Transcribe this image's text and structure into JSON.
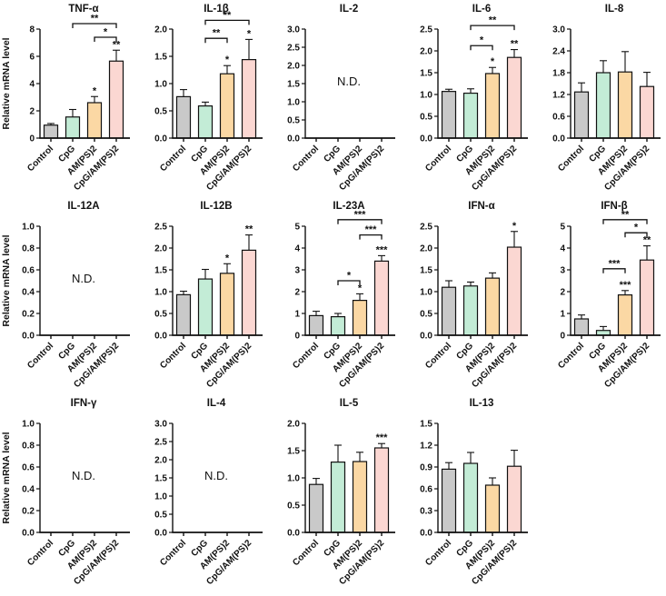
{
  "figure": {
    "ylabel": "Relative mRNA level",
    "nd_label": "N.D.",
    "categories": [
      "Control",
      "CpG",
      "AM(PS)2",
      "CpG/AM(PS)2"
    ],
    "bar_colors": [
      "#c9c9c9",
      "#c3ecd6",
      "#fbd8a4",
      "#fbd7d2"
    ],
    "axis_color": "#111111"
  },
  "chart_data": [
    {
      "type": "bar",
      "title": "TNF-α",
      "show_ylabel": true,
      "nd": false,
      "ymax": 8,
      "yticks": [
        "0",
        "2",
        "4",
        "6",
        "8"
      ],
      "values": [
        0.95,
        1.55,
        2.6,
        5.65
      ],
      "errors": [
        0.12,
        0.55,
        0.45,
        0.8
      ],
      "sig": [
        "",
        "",
        "*",
        "**"
      ],
      "brackets": [
        {
          "from": 1,
          "to": 3,
          "label": "**",
          "y": 8.4
        },
        {
          "from": 2,
          "to": 3,
          "label": "*",
          "y": 7.4
        }
      ]
    },
    {
      "type": "bar",
      "title": "IL-1β",
      "show_ylabel": false,
      "nd": false,
      "ymax": 2.0,
      "yticks": [
        "0.0",
        "0.5",
        "1.0",
        "1.5",
        "2.0"
      ],
      "values": [
        0.76,
        0.59,
        1.18,
        1.44
      ],
      "errors": [
        0.13,
        0.07,
        0.15,
        0.37
      ],
      "sig": [
        "",
        "",
        "*",
        "*"
      ],
      "brackets": [
        {
          "from": 1,
          "to": 3,
          "label": "**",
          "y": 2.16
        },
        {
          "from": 1,
          "to": 2,
          "label": "**",
          "y": 1.83
        }
      ]
    },
    {
      "type": "bar",
      "title": "IL-2",
      "show_ylabel": false,
      "nd": true,
      "ymax": 3.0,
      "yticks": [
        "0.0",
        "0.5",
        "1.0",
        "1.5",
        "2.0",
        "2.5",
        "3.0"
      ],
      "values": [
        0,
        0,
        0,
        0
      ],
      "errors": [
        0,
        0,
        0,
        0
      ],
      "sig": [
        "",
        "",
        "",
        ""
      ],
      "brackets": []
    },
    {
      "type": "bar",
      "title": "IL-6",
      "show_ylabel": false,
      "nd": false,
      "ymax": 2.5,
      "yticks": [
        "0.0",
        "0.5",
        "1.0",
        "1.5",
        "2.0",
        "2.5"
      ],
      "values": [
        1.07,
        1.03,
        1.48,
        1.85
      ],
      "errors": [
        0.05,
        0.1,
        0.14,
        0.18
      ],
      "sig": [
        "",
        "",
        "*",
        "**"
      ],
      "brackets": [
        {
          "from": 1,
          "to": 3,
          "label": "**",
          "y": 2.58
        },
        {
          "from": 1,
          "to": 2,
          "label": "*",
          "y": 2.12
        }
      ]
    },
    {
      "type": "bar",
      "title": "IL-8",
      "show_ylabel": false,
      "nd": false,
      "ymax": 3.0,
      "yticks": [
        "0.0",
        "0.6",
        "1.2",
        "1.8",
        "2.4",
        "3.0"
      ],
      "values": [
        1.27,
        1.8,
        1.82,
        1.42
      ],
      "errors": [
        0.25,
        0.33,
        0.56,
        0.39
      ],
      "sig": [
        "",
        "",
        "",
        ""
      ],
      "brackets": []
    },
    {
      "type": "bar",
      "title": "IL-12A",
      "show_ylabel": true,
      "nd": true,
      "ymax": 1.0,
      "yticks": [
        "0.0",
        "0.2",
        "0.4",
        "0.6",
        "0.8",
        "1.0"
      ],
      "values": [
        0,
        0,
        0,
        0
      ],
      "errors": [
        0,
        0,
        0,
        0
      ],
      "sig": [
        "",
        "",
        "",
        ""
      ],
      "brackets": []
    },
    {
      "type": "bar",
      "title": "IL-12B",
      "show_ylabel": false,
      "nd": false,
      "ymax": 2.5,
      "yticks": [
        "0.0",
        "0.5",
        "1.0",
        "1.5",
        "2.0",
        "2.5"
      ],
      "values": [
        0.93,
        1.29,
        1.42,
        1.95
      ],
      "errors": [
        0.08,
        0.22,
        0.22,
        0.35
      ],
      "sig": [
        "",
        "",
        "*",
        "**"
      ],
      "brackets": []
    },
    {
      "type": "bar",
      "title": "IL-23A",
      "show_ylabel": false,
      "nd": false,
      "ymax": 5,
      "yticks": [
        "0",
        "1",
        "2",
        "3",
        "4",
        "5"
      ],
      "values": [
        0.9,
        0.85,
        1.6,
        3.4
      ],
      "errors": [
        0.2,
        0.15,
        0.3,
        0.25
      ],
      "sig": [
        "",
        "",
        "*",
        "***"
      ],
      "brackets": [
        {
          "from": 1,
          "to": 3,
          "label": "***",
          "y": 5.3
        },
        {
          "from": 2,
          "to": 3,
          "label": "***",
          "y": 4.6
        },
        {
          "from": 1,
          "to": 2,
          "label": "*",
          "y": 2.5
        }
      ]
    },
    {
      "type": "bar",
      "title": "IFN-α",
      "show_ylabel": false,
      "nd": false,
      "ymax": 2.5,
      "yticks": [
        "0.0",
        "0.5",
        "1.0",
        "1.5",
        "2.0",
        "2.5"
      ],
      "values": [
        1.1,
        1.13,
        1.31,
        2.02
      ],
      "errors": [
        0.15,
        0.09,
        0.12,
        0.36
      ],
      "sig": [
        "",
        "",
        "",
        "*"
      ],
      "brackets": []
    },
    {
      "type": "bar",
      "title": "IFN-β",
      "show_ylabel": false,
      "nd": false,
      "ymax": 5,
      "yticks": [
        "0",
        "1",
        "2",
        "3",
        "4",
        "5"
      ],
      "values": [
        0.75,
        0.22,
        1.85,
        3.45
      ],
      "errors": [
        0.18,
        0.18,
        0.2,
        0.65
      ],
      "sig": [
        "",
        "",
        "***",
        "**"
      ],
      "brackets": [
        {
          "from": 1,
          "to": 3,
          "label": "**",
          "y": 5.3
        },
        {
          "from": 2,
          "to": 3,
          "label": "*",
          "y": 4.7
        },
        {
          "from": 1,
          "to": 2,
          "label": "***",
          "y": 3.05
        }
      ]
    },
    {
      "type": "bar",
      "title": "IFN-γ",
      "show_ylabel": true,
      "nd": true,
      "ymax": 1.0,
      "yticks": [
        "0.0",
        "0.2",
        "0.4",
        "0.6",
        "0.8",
        "1.0"
      ],
      "values": [
        0,
        0,
        0,
        0
      ],
      "errors": [
        0,
        0,
        0,
        0
      ],
      "sig": [
        "",
        "",
        "",
        ""
      ],
      "brackets": []
    },
    {
      "type": "bar",
      "title": "IL-4",
      "show_ylabel": false,
      "nd": true,
      "ymax": 3.0,
      "yticks": [
        "0.0",
        "0.5",
        "1.0",
        "1.5",
        "2.0",
        "2.5",
        "3.0"
      ],
      "values": [
        0,
        0,
        0,
        0
      ],
      "errors": [
        0,
        0,
        0,
        0
      ],
      "sig": [
        "",
        "",
        "",
        ""
      ],
      "brackets": []
    },
    {
      "type": "bar",
      "title": "IL-5",
      "show_ylabel": false,
      "nd": false,
      "ymax": 2.0,
      "yticks": [
        "0.0",
        "0.5",
        "1.0",
        "1.5",
        "2.0"
      ],
      "values": [
        0.88,
        1.29,
        1.3,
        1.55
      ],
      "errors": [
        0.11,
        0.31,
        0.17,
        0.08
      ],
      "sig": [
        "",
        "",
        "",
        "***"
      ],
      "brackets": []
    },
    {
      "type": "bar",
      "title": "IL-13",
      "show_ylabel": false,
      "nd": false,
      "ymax": 1.5,
      "yticks": [
        "0.0",
        "0.3",
        "0.6",
        "0.9",
        "1.2",
        "1.5"
      ],
      "values": [
        0.87,
        0.95,
        0.65,
        0.91
      ],
      "errors": [
        0.09,
        0.15,
        0.1,
        0.22
      ],
      "sig": [
        "",
        "",
        "",
        ""
      ],
      "brackets": []
    }
  ]
}
